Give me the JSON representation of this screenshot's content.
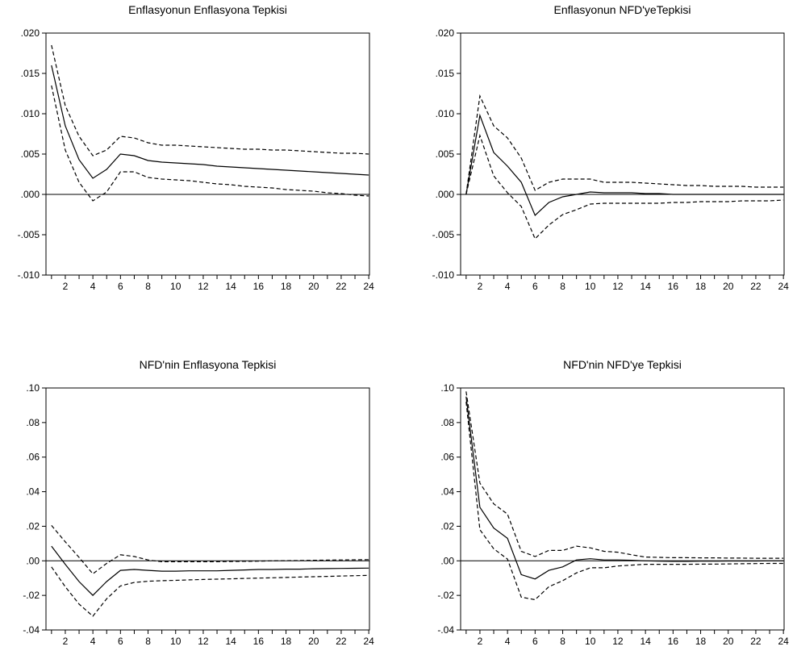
{
  "chart_data": [
    {
      "type": "line",
      "title": "Enflasyonun Enflasyona Tepkisi",
      "x": [
        1,
        2,
        3,
        4,
        5,
        6,
        7,
        8,
        9,
        10,
        11,
        12,
        13,
        14,
        15,
        16,
        17,
        18,
        19,
        20,
        21,
        22,
        23,
        24
      ],
      "xticks": [
        "2",
        "4",
        "6",
        "8",
        "10",
        "12",
        "14",
        "16",
        "18",
        "20",
        "22",
        "24"
      ],
      "ylim": [
        -0.01,
        0.02
      ],
      "yticks": [
        ".020",
        ".015",
        ".010",
        ".005",
        ".000",
        "-.005",
        "-.010"
      ],
      "series": [
        {
          "style": "solid",
          "values": [
            0.016,
            0.0085,
            0.0043,
            0.002,
            0.0031,
            0.005,
            0.0048,
            0.0042,
            0.004,
            0.0039,
            0.0038,
            0.0037,
            0.0035,
            0.0034,
            0.0033,
            0.0032,
            0.0031,
            0.003,
            0.0029,
            0.0028,
            0.0027,
            0.0026,
            0.0025,
            0.0024
          ]
        },
        {
          "style": "dashed",
          "values": [
            0.0185,
            0.011,
            0.0072,
            0.0048,
            0.0055,
            0.0072,
            0.007,
            0.0064,
            0.0061,
            0.0061,
            0.006,
            0.0059,
            0.0058,
            0.0057,
            0.0056,
            0.0056,
            0.0055,
            0.0055,
            0.0054,
            0.0053,
            0.0052,
            0.0051,
            0.0051,
            0.005
          ]
        },
        {
          "style": "dashed",
          "values": [
            0.0135,
            0.0055,
            0.0015,
            -0.0008,
            0.0003,
            0.0028,
            0.0028,
            0.0021,
            0.0019,
            0.0018,
            0.0017,
            0.0015,
            0.0013,
            0.0012,
            0.001,
            0.0009,
            0.0008,
            0.0006,
            0.0005,
            0.0004,
            0.0002,
            0.0001,
            -0.0001,
            -0.0002
          ]
        }
      ]
    },
    {
      "type": "line",
      "title": "Enflasyonun NFD'yeTepkisi",
      "x": [
        1,
        2,
        3,
        4,
        5,
        6,
        7,
        8,
        9,
        10,
        11,
        12,
        13,
        14,
        15,
        16,
        17,
        18,
        19,
        20,
        21,
        22,
        23,
        24
      ],
      "xticks": [
        "2",
        "4",
        "6",
        "8",
        "10",
        "12",
        "14",
        "16",
        "18",
        "20",
        "22",
        "24"
      ],
      "ylim": [
        -0.01,
        0.02
      ],
      "yticks": [
        ".020",
        ".015",
        ".010",
        ".005",
        ".000",
        "-.005",
        "-.010"
      ],
      "series": [
        {
          "style": "solid",
          "values": [
            0.0,
            0.0098,
            0.0052,
            0.0035,
            0.0015,
            -0.0026,
            -0.001,
            -0.0003,
            0.0,
            0.0003,
            0.0002,
            0.0002,
            0.0002,
            0.0001,
            0.0001,
            0.0,
            0.0,
            0.0,
            0.0,
            0.0,
            0.0,
            0.0,
            0.0,
            0.0
          ]
        },
        {
          "style": "dashed",
          "values": [
            0.0,
            0.0122,
            0.0085,
            0.007,
            0.0045,
            0.0005,
            0.0015,
            0.0019,
            0.0019,
            0.0019,
            0.0015,
            0.0015,
            0.0015,
            0.0014,
            0.0013,
            0.0012,
            0.0011,
            0.0011,
            0.001,
            0.001,
            0.001,
            0.0009,
            0.0009,
            0.0009
          ]
        },
        {
          "style": "dashed",
          "values": [
            0.0,
            0.0073,
            0.0023,
            0.0002,
            -0.0015,
            -0.0055,
            -0.0038,
            -0.0025,
            -0.0019,
            -0.0012,
            -0.0011,
            -0.0011,
            -0.0011,
            -0.0011,
            -0.0011,
            -0.001,
            -0.001,
            -0.0009,
            -0.0009,
            -0.0009,
            -0.0008,
            -0.0008,
            -0.0008,
            -0.0007
          ]
        }
      ]
    },
    {
      "type": "line",
      "title": "NFD'nin Enflasyona Tepkisi",
      "x": [
        1,
        2,
        3,
        4,
        5,
        6,
        7,
        8,
        9,
        10,
        11,
        12,
        13,
        14,
        15,
        16,
        17,
        18,
        19,
        20,
        21,
        22,
        23,
        24
      ],
      "xticks": [
        "2",
        "4",
        "6",
        "8",
        "10",
        "12",
        "14",
        "16",
        "18",
        "20",
        "22",
        "24"
      ],
      "ylim": [
        -0.04,
        0.1
      ],
      "yticks": [
        ".10",
        ".08",
        ".06",
        ".04",
        ".02",
        ".00",
        "-.02",
        "-.04"
      ],
      "series": [
        {
          "style": "solid",
          "values": [
            0.0085,
            -0.002,
            -0.012,
            -0.02,
            -0.012,
            -0.0055,
            -0.005,
            -0.0055,
            -0.006,
            -0.006,
            -0.0058,
            -0.0058,
            -0.0058,
            -0.0055,
            -0.0053,
            -0.005,
            -0.005,
            -0.0048,
            -0.0048,
            -0.0046,
            -0.0045,
            -0.0044,
            -0.0043,
            -0.0042
          ]
        },
        {
          "style": "dashed",
          "values": [
            0.0205,
            0.011,
            0.002,
            -0.0075,
            -0.0015,
            0.0035,
            0.0025,
            0.0005,
            -0.0005,
            -0.0005,
            -0.0005,
            -0.0005,
            -0.0005,
            -0.0004,
            -0.0003,
            -0.0002,
            0.0,
            0.0001,
            0.0002,
            0.0003,
            0.0004,
            0.0005,
            0.0006,
            0.0007
          ]
        },
        {
          "style": "dashed",
          "values": [
            -0.0035,
            -0.015,
            -0.025,
            -0.032,
            -0.022,
            -0.0145,
            -0.0125,
            -0.0118,
            -0.0115,
            -0.0113,
            -0.011,
            -0.0108,
            -0.0106,
            -0.0104,
            -0.0102,
            -0.01,
            -0.0098,
            -0.0096,
            -0.0094,
            -0.0092,
            -0.009,
            -0.0088,
            -0.0086,
            -0.0084
          ]
        }
      ]
    },
    {
      "type": "line",
      "title": "NFD'nin NFD'ye Tepkisi",
      "x": [
        1,
        2,
        3,
        4,
        5,
        6,
        7,
        8,
        9,
        10,
        11,
        12,
        13,
        14,
        15,
        16,
        17,
        18,
        19,
        20,
        21,
        22,
        23,
        24
      ],
      "xticks": [
        "2",
        "4",
        "6",
        "8",
        "10",
        "12",
        "14",
        "16",
        "18",
        "20",
        "22",
        "24"
      ],
      "ylim": [
        -0.04,
        0.1
      ],
      "yticks": [
        ".10",
        ".08",
        ".06",
        ".04",
        ".02",
        ".00",
        "-.02",
        "-.04"
      ],
      "series": [
        {
          "style": "solid",
          "values": [
            0.095,
            0.031,
            0.019,
            0.013,
            -0.008,
            -0.0105,
            -0.0055,
            -0.0035,
            0.0005,
            0.0012,
            0.0005,
            0.0005,
            0.0003,
            0.0,
            -0.0002,
            -0.0003,
            -0.0003,
            -0.0002,
            -0.0002,
            -0.0001,
            -0.0001,
            -0.0001,
            0.0,
            0.0
          ]
        },
        {
          "style": "dashed",
          "values": [
            0.098,
            0.045,
            0.033,
            0.027,
            0.0055,
            0.0025,
            0.006,
            0.006,
            0.0085,
            0.0075,
            0.0055,
            0.005,
            0.0035,
            0.0022,
            0.002,
            0.0018,
            0.0018,
            0.0017,
            0.0017,
            0.0016,
            0.0016,
            0.0015,
            0.0015,
            0.0015
          ]
        },
        {
          "style": "dashed",
          "values": [
            0.092,
            0.018,
            0.007,
            0.001,
            -0.021,
            -0.0225,
            -0.015,
            -0.0115,
            -0.007,
            -0.004,
            -0.004,
            -0.003,
            -0.0025,
            -0.002,
            -0.002,
            -0.002,
            -0.002,
            -0.0019,
            -0.0019,
            -0.0018,
            -0.0017,
            -0.0016,
            -0.0015,
            -0.0015
          ]
        }
      ]
    }
  ]
}
